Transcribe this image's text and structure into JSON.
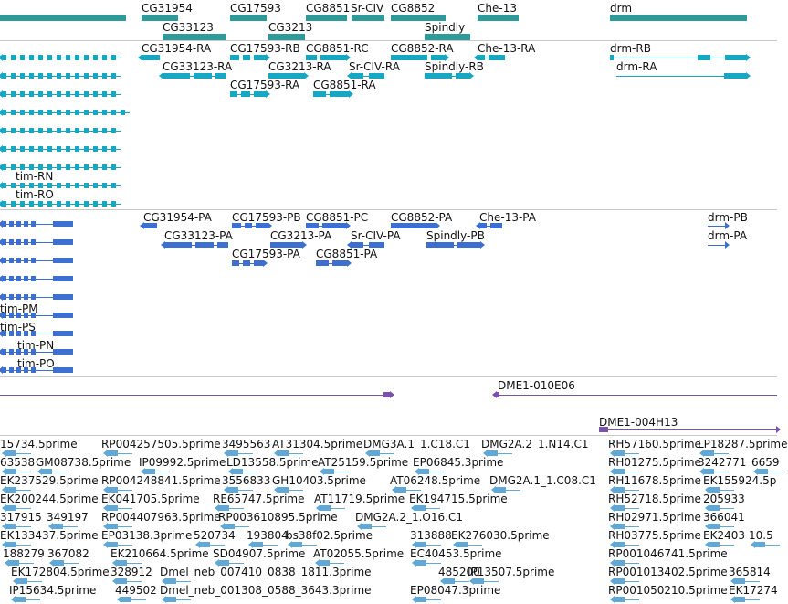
{
  "colors": {
    "gene": "#2e9a9a",
    "rna": "#17a7c3",
    "cds": "#3c6fcf",
    "clone": "#7a52ad",
    "est": "#5fa8d8",
    "separator": "#c8c8c8",
    "text": "#111111"
  },
  "tracks": {
    "gene": {
      "labels": [
        "CG31954",
        "CG17593",
        "CG8851",
        "Sr-CIV",
        "CG8852",
        "Che-13",
        "drm",
        "CG33123",
        "CG3213",
        "Spindly"
      ]
    },
    "transcript": {
      "labels": [
        "CG31954-RA",
        "CG17593-RB",
        "CG8851-RC",
        "CG8852-RA",
        "Che-13-RA",
        "drm-RB",
        "CG33123-RA",
        "CG3213-RA",
        "Sr-CIV-RA",
        "Spindly-RB",
        "drm-RA",
        "CG17593-RA",
        "CG8851-RA",
        "tim-RN",
        "tim-RO"
      ]
    },
    "protein": {
      "labels": [
        "CG31954-PA",
        "CG17593-PB",
        "CG8851-PC",
        "CG8852-PA",
        "Che-13-PA",
        "drm-PB",
        "CG33123-PA",
        "CG3213-PA",
        "Sr-CIV-PA",
        "Spindly-PB",
        "drm-PA",
        "CG17593-PA",
        "CG8851-PA",
        "tim-PM",
        "tim-PS",
        "tim-PN",
        "tim-PO"
      ]
    },
    "clone": {
      "labels": [
        "DME1-010E06",
        "DME1-004H13"
      ]
    },
    "est": {
      "labels": [
        "15734.5prime",
        "RP004257505.5prime",
        "3495563",
        "AT31304.5prime",
        "DMG3A.1_1.C18.C1",
        "DMG2A.2_1.N14.C1",
        "RH57160.5prime",
        "LP18287.5prime",
        "63538",
        "GM08738.5prime",
        "IP09992.5prime",
        "LD13558.5prime",
        "AT25159.5prime",
        "EP06845.3prime",
        "RH01275.5prime",
        "3242771",
        "6659",
        "EK237529.5prime",
        "RP004248841.5prime",
        "3556833",
        "GH10403.5prime",
        "AT06248.5prime",
        "DMG2A.1_1.C08.C1",
        "RH11678.5prime",
        "EK155924.5p",
        "EK200244.5prime",
        "EK041705.5prime",
        "RE65747.5prime",
        "AT11719.5prime",
        "EK194715.5prime",
        "RH52718.5prime",
        "205933",
        "317915",
        "349197",
        "RP004407963.5prime",
        "RP003610895.5prime",
        "DMG2A.2_1.O16.C1",
        "RH02971.5prime",
        "366041",
        "EK133437.5prime",
        "EP03138.3prime",
        "520734",
        "193804",
        "bs38f02.5prime",
        "313888",
        "EK276030.5prime",
        "RH03775.5prime",
        "EK2403",
        "10.5",
        "188279",
        "367082",
        "EK210664.5prime",
        "SD04907.5prime",
        "AT02055.5prime",
        "EC40453.5prime",
        "RP001046741.5prime",
        "EK172804.5prime",
        "328912",
        "Dmel_neb_007410_0838_1811.3prime",
        "485200",
        "IP13507.5prime",
        "RP001013402.5prime",
        "365814",
        "IP15634.5prime",
        "449502",
        "Dmel_neb_001308_0588_3643.3prime",
        "EP08047.3prime",
        "RP001050210.5prime",
        "EK17274"
      ]
    }
  }
}
